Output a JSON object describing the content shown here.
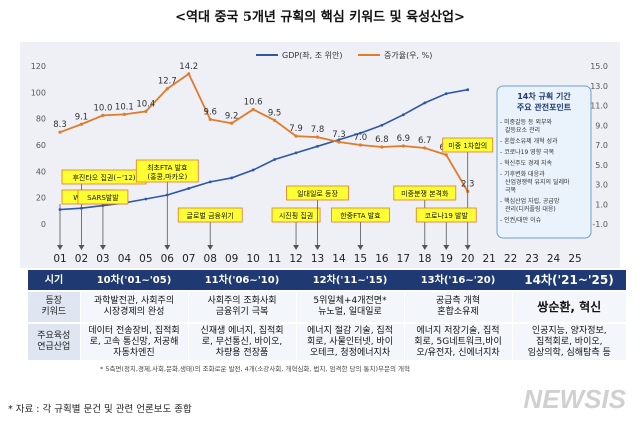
{
  "title": "<역대 중국 5개년 규획의 핵심 키워드 및 육성산업>",
  "chart_data": {
    "type": "line",
    "categories": [
      "01",
      "02",
      "03",
      "04",
      "05",
      "06",
      "07",
      "08",
      "09",
      "10",
      "11",
      "12",
      "13",
      "14",
      "15",
      "16",
      "17",
      "18",
      "19",
      "20",
      "21",
      "22",
      "23",
      "24",
      "25"
    ],
    "series": [
      {
        "name": "GDP(좌, 조 위안)",
        "axis": "left",
        "color": "#2e57a8",
        "x": [
          "01",
          "02",
          "03",
          "04",
          "05",
          "06",
          "07",
          "08",
          "09",
          "10",
          "11",
          "12",
          "13",
          "14",
          "15",
          "16",
          "17",
          "18",
          "19",
          "20"
        ],
        "values": [
          11,
          12,
          14,
          16,
          19,
          22,
          27,
          32,
          35,
          41,
          49,
          54,
          59,
          64,
          69,
          75,
          83,
          92,
          99,
          102
        ]
      },
      {
        "name": "증가율(우, %)",
        "axis": "right",
        "color": "#e07b2a",
        "x": [
          "01",
          "02",
          "03",
          "04",
          "05",
          "06",
          "07",
          "08",
          "09",
          "10",
          "11",
          "12",
          "13",
          "14",
          "15",
          "16",
          "17",
          "18",
          "19",
          "20"
        ],
        "values": [
          8.3,
          9.1,
          10.0,
          10.1,
          10.4,
          12.7,
          14.2,
          9.6,
          9.2,
          10.6,
          9.5,
          7.9,
          7.8,
          7.3,
          7.0,
          6.8,
          6.9,
          6.7,
          6.0,
          2.3
        ]
      }
    ],
    "data_labels": [
      "8.3",
      "9.1",
      "10.0",
      "10.1",
      "10.4",
      "12.7",
      "14.2",
      "9.6",
      "9.2",
      "10.6",
      "9.5",
      "7.9",
      "7.8",
      "7.3",
      "7.0",
      "6.8",
      "6.9",
      "6.7",
      "6.0",
      "2.3"
    ],
    "left_axis": {
      "range": [
        0,
        120
      ],
      "ticks": [
        "0",
        "20",
        "40",
        "60",
        "80",
        "100",
        "120"
      ]
    },
    "right_axis": {
      "range": [
        -1,
        15
      ],
      "ticks": [
        "-1.0",
        "1.0",
        "3.0",
        "5.0",
        "7.0",
        "9.0",
        "11.0",
        "13.0",
        "15.0"
      ]
    },
    "legend_placement": "top"
  },
  "events": [
    {
      "text": "WTO가입",
      "x": "01"
    },
    {
      "text": "후진타오 집권(~'12)",
      "x": "02"
    },
    {
      "text": "SARS발발",
      "x": "03"
    },
    {
      "text": "최초FTA 발효\n(홍콩,마카오)",
      "x": "06"
    },
    {
      "text": "글로벌 금융위기",
      "x": "08"
    },
    {
      "text": "시진핑 집권",
      "x": "12"
    },
    {
      "text": "일대일로 등장",
      "x": "13"
    },
    {
      "text": "한중FTA 발효",
      "x": "15"
    },
    {
      "text": "미중분쟁 본격화",
      "x": "18"
    },
    {
      "text": "미중 1차합의",
      "x": "20"
    },
    {
      "text": "코로나19 발발",
      "x": "19"
    }
  ],
  "plan_box": {
    "title": "14차 규획 기간\n주요 관전포인트",
    "items": [
      "미중갈등 등 외부와 갈등요소 관리",
      "혼합소유제 개혁 성과",
      "코로나19 영향 극복",
      "혁신주도 경제 지속",
      "기후변화 대응과 산업경쟁력 유지의 딜레마 극복",
      "핵심산업 자립, 공급망 관리(디커플링 대응)",
      "인권/대만 이슈"
    ]
  },
  "table": {
    "headers": [
      "시기",
      "10차('01~'05)",
      "11차('06~'10)",
      "12차('11~'15)",
      "13차('16~'20)",
      "14차('21~'25)"
    ],
    "keyword_row": [
      "등장\n키워드",
      "과학발전관, 사회주의\n시장경제의 완성",
      "사회주의 조화사회\n금융위기 극복",
      "5위일체+4개전면*\n뉴노멀, 일대일로",
      "공급측 개혁\n혼합소유제",
      "쌍순환, 혁신"
    ],
    "industry_row": [
      "주요육성\n연급산업",
      "데이터 전송장비, 집적회\n로, 고속 통신망, 저공해\n자동차엔진",
      "신재생 에너지, 집적회\n로, 무선통신, 바이오,\n차량용 전장품",
      "에너지 절감 기술, 집적\n회로, 사물인터넷, 바이\n오테크, 청정에너지차",
      "에너지 저장기술, 집적\n회로, 5G네트워크,바이\n오/유전자, 신에너지차",
      "인공지능, 양자정보,\n집적회로, 바이오,\n임상의학, 심해탐측 등"
    ]
  },
  "footnote": "* 5측면(정치,경제,사회,문화,생태)의 조화로운 발전, 4개(소강사회, 개혁심화, 법치, 엄격한 당의 통치)부문의 개혁",
  "source": "* 자료 : 각 규획별 문건 및 관련 언론보도 종합",
  "watermark": "NEWSIS",
  "colors": {
    "gdp": "#2e57a8",
    "growth": "#e07b2a",
    "header": "#1f3a73",
    "event_fill": "#ffff33",
    "event_border": "#e07b2a",
    "plan_box_fill": "#eaf3fb",
    "plan_box_border": "#6fa0d0",
    "chart_bg": "#eef0f6"
  }
}
